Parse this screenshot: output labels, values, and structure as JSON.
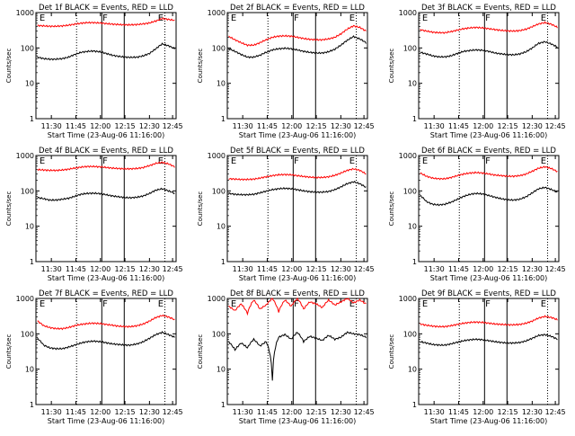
{
  "chart_data": [
    {
      "type": "line",
      "title": "Det 1f BLACK = Events, RED = LLD",
      "xlabel": "Start Time (23-Aug-06 11:16:00)",
      "ylabel": "Counts/sec",
      "yscale": "log",
      "ylim": [
        1,
        1000
      ],
      "x_ticks": [
        "11:30",
        "11:45",
        "12:00",
        "12:15",
        "12:30",
        "12:45"
      ],
      "y_ticks": [
        "1",
        "10",
        "100",
        "1000"
      ],
      "markers": [
        "E",
        "F",
        "E"
      ],
      "series": [
        {
          "color": "#ff0000",
          "values": [
            430,
            420,
            410,
            410,
            420,
            440,
            470,
            500,
            520,
            520,
            510,
            490,
            470,
            460,
            450,
            450,
            460,
            480,
            510,
            580,
            680,
            640,
            600
          ]
        },
        {
          "color": "#000000",
          "values": [
            55,
            50,
            48,
            48,
            50,
            55,
            65,
            75,
            80,
            82,
            78,
            70,
            62,
            58,
            55,
            54,
            55,
            60,
            70,
            95,
            130,
            115,
            95
          ]
        }
      ]
    },
    {
      "type": "line",
      "title": "Det 2f BLACK = Events, RED = LLD",
      "xlabel": "Start Time (23-Aug-06 11:16:00)",
      "ylabel": "Counts/sec",
      "yscale": "log",
      "ylim": [
        1,
        1000
      ],
      "x_ticks": [
        "11:30",
        "11:45",
        "12:00",
        "12:15",
        "12:30",
        "12:45"
      ],
      "y_ticks": [
        "1",
        "10",
        "100",
        "1000"
      ],
      "markers": [
        "E",
        "F",
        "E"
      ],
      "series": [
        {
          "color": "#ff0000",
          "values": [
            210,
            170,
            140,
            120,
            120,
            140,
            170,
            200,
            215,
            220,
            215,
            200,
            185,
            175,
            170,
            170,
            180,
            200,
            250,
            340,
            420,
            380,
            300
          ]
        },
        {
          "color": "#000000",
          "values": [
            95,
            80,
            65,
            55,
            55,
            62,
            75,
            88,
            95,
            98,
            95,
            88,
            80,
            75,
            72,
            72,
            78,
            92,
            120,
            165,
            210,
            180,
            140
          ]
        }
      ]
    },
    {
      "type": "line",
      "title": "Det 3f BLACK = Events, RED = LLD",
      "xlabel": "Start Time (23-Aug-06 11:16:00)",
      "ylabel": "Counts/sec",
      "yscale": "log",
      "ylim": [
        1,
        1000
      ],
      "x_ticks": [
        "11:30",
        "11:45",
        "12:00",
        "12:15",
        "12:30",
        "12:45"
      ],
      "y_ticks": [
        "1",
        "10",
        "100",
        "1000"
      ],
      "markers": [
        "E",
        "F",
        "E"
      ],
      "series": [
        {
          "color": "#ff0000",
          "values": [
            330,
            300,
            280,
            270,
            270,
            290,
            320,
            350,
            370,
            380,
            370,
            350,
            330,
            315,
            305,
            300,
            310,
            340,
            400,
            480,
            520,
            470,
            380
          ]
        },
        {
          "color": "#000000",
          "values": [
            75,
            68,
            60,
            56,
            56,
            60,
            70,
            80,
            85,
            88,
            86,
            80,
            72,
            68,
            65,
            64,
            68,
            78,
            100,
            135,
            150,
            130,
            105
          ]
        }
      ]
    },
    {
      "type": "line",
      "title": "Det 4f BLACK = Events, RED = LLD",
      "xlabel": "Start Time (23-Aug-06 11:16:00)",
      "ylabel": "Counts/sec",
      "yscale": "log",
      "ylim": [
        1,
        1000
      ],
      "x_ticks": [
        "11:30",
        "11:45",
        "12:00",
        "12:15",
        "12:30",
        "12:45"
      ],
      "y_ticks": [
        "1",
        "10",
        "100",
        "1000"
      ],
      "markers": [
        "E",
        "F",
        "E"
      ],
      "series": [
        {
          "color": "#ff0000",
          "values": [
            400,
            390,
            380,
            380,
            390,
            410,
            440,
            470,
            490,
            490,
            480,
            460,
            440,
            430,
            420,
            420,
            430,
            460,
            520,
            600,
            640,
            580,
            480
          ]
        },
        {
          "color": "#000000",
          "values": [
            65,
            60,
            55,
            55,
            58,
            62,
            70,
            80,
            85,
            86,
            84,
            78,
            72,
            68,
            65,
            64,
            66,
            72,
            85,
            105,
            115,
            100,
            85
          ]
        }
      ]
    },
    {
      "type": "line",
      "title": "Det 5f BLACK = Events, RED = LLD",
      "xlabel": "Start Time (23-Aug-06 11:16:00)",
      "ylabel": "Counts/sec",
      "yscale": "log",
      "ylim": [
        1,
        1000
      ],
      "x_ticks": [
        "11:30",
        "11:45",
        "12:00",
        "12:15",
        "12:30",
        "12:45"
      ],
      "y_ticks": [
        "1",
        "10",
        "100",
        "1000"
      ],
      "markers": [
        "E",
        "F",
        "E"
      ],
      "series": [
        {
          "color": "#ff0000",
          "values": [
            220,
            215,
            210,
            210,
            215,
            230,
            250,
            270,
            285,
            290,
            285,
            270,
            255,
            245,
            240,
            240,
            250,
            275,
            320,
            380,
            420,
            380,
            300
          ]
        },
        {
          "color": "#000000",
          "values": [
            85,
            80,
            78,
            78,
            80,
            88,
            98,
            108,
            115,
            118,
            115,
            108,
            100,
            95,
            92,
            92,
            96,
            108,
            130,
            160,
            180,
            160,
            125
          ]
        }
      ]
    },
    {
      "type": "line",
      "title": "Det 6f BLACK = Events, RED = LLD",
      "xlabel": "Start Time (23-Aug-06 11:16:00)",
      "ylabel": "Counts/sec",
      "yscale": "log",
      "ylim": [
        1,
        1000
      ],
      "x_ticks": [
        "11:30",
        "11:45",
        "12:00",
        "12:15",
        "12:30",
        "12:45"
      ],
      "y_ticks": [
        "1",
        "10",
        "100",
        "1000"
      ],
      "markers": [
        "E",
        "F",
        "E"
      ],
      "series": [
        {
          "color": "#ff0000",
          "values": [
            320,
            260,
            230,
            220,
            220,
            240,
            270,
            300,
            320,
            330,
            320,
            300,
            280,
            270,
            260,
            260,
            270,
            300,
            360,
            440,
            480,
            430,
            350
          ]
        },
        {
          "color": "#000000",
          "values": [
            75,
            50,
            42,
            40,
            42,
            48,
            58,
            70,
            80,
            85,
            82,
            74,
            66,
            60,
            56,
            55,
            58,
            68,
            88,
            115,
            125,
            110,
            90
          ]
        }
      ]
    },
    {
      "type": "line",
      "title": "Det 7f BLACK = Events, RED = LLD",
      "xlabel": "Start Time (23-Aug-06 11:16:00)",
      "ylabel": "Counts/sec",
      "yscale": "log",
      "ylim": [
        1,
        1000
      ],
      "x_ticks": [
        "11:30",
        "11:45",
        "12:00",
        "12:15",
        "12:30",
        "12:45"
      ],
      "y_ticks": [
        "1",
        "10",
        "100",
        "1000"
      ],
      "markers": [
        "E",
        "F",
        "E"
      ],
      "series": [
        {
          "color": "#ff0000",
          "values": [
            230,
            170,
            150,
            140,
            140,
            150,
            170,
            185,
            195,
            200,
            195,
            185,
            175,
            165,
            160,
            160,
            170,
            190,
            230,
            290,
            330,
            300,
            250
          ]
        },
        {
          "color": "#000000",
          "values": [
            75,
            48,
            40,
            38,
            38,
            42,
            48,
            55,
            60,
            62,
            60,
            56,
            52,
            50,
            48,
            48,
            52,
            60,
            75,
            95,
            110,
            95,
            80
          ]
        }
      ]
    },
    {
      "type": "line",
      "title": "Det 8f BLACK = Events, RED = LLD",
      "xlabel": "Start Time (23-Aug-06 11:16:00)",
      "ylabel": "Counts/sec",
      "yscale": "log",
      "ylim": [
        1,
        1000
      ],
      "x_ticks": [
        "11:30",
        "11:45",
        "12:00",
        "12:15",
        "12:30",
        "12:45"
      ],
      "y_ticks": [
        "1",
        "10",
        "100",
        "1000"
      ],
      "markers": [
        "E",
        "F",
        "E"
      ],
      "series": [
        {
          "color": "#ff0000",
          "values": [
            600,
            450,
            700,
            380,
            900,
            500,
            650,
            1000,
            420,
            900,
            600,
            1000,
            500,
            800,
            700,
            550,
            900,
            650,
            800,
            1000,
            750,
            900,
            700
          ]
        },
        {
          "color": "#000000",
          "values": [
            60,
            35,
            55,
            40,
            70,
            45,
            60,
            5,
            80,
            95,
            70,
            110,
            60,
            85,
            75,
            65,
            90,
            70,
            80,
            110,
            100,
            95,
            80
          ]
        }
      ]
    },
    {
      "type": "line",
      "title": "Det 9f BLACK = Events, RED = LLD",
      "xlabel": "Start Time (23-Aug-06 11:16:00)",
      "ylabel": "Counts/sec",
      "yscale": "log",
      "ylim": [
        1,
        1000
      ],
      "x_ticks": [
        "11:30",
        "11:45",
        "12:00",
        "12:15",
        "12:30",
        "12:45"
      ],
      "y_ticks": [
        "1",
        "10",
        "100",
        "1000"
      ],
      "markers": [
        "E",
        "F",
        "E"
      ],
      "series": [
        {
          "color": "#ff0000",
          "values": [
            190,
            175,
            165,
            160,
            160,
            170,
            185,
            200,
            210,
            215,
            210,
            200,
            190,
            185,
            180,
            180,
            185,
            200,
            230,
            280,
            310,
            290,
            250
          ]
        },
        {
          "color": "#000000",
          "values": [
            60,
            55,
            50,
            48,
            48,
            52,
            58,
            64,
            68,
            70,
            68,
            64,
            60,
            57,
            55,
            55,
            57,
            63,
            75,
            90,
            95,
            85,
            70
          ]
        }
      ]
    }
  ]
}
